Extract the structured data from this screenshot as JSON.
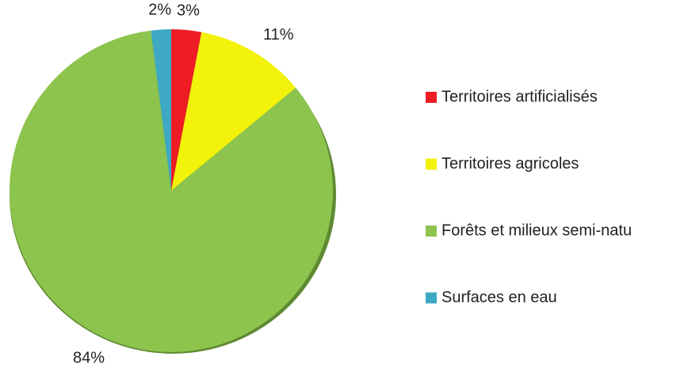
{
  "chart_data": {
    "type": "pie",
    "categories": [
      "Territoires artificialisés",
      "Territoires agricoles",
      "Forêts et milieux semi-natu",
      "Surfaces en eau"
    ],
    "values": [
      3,
      11,
      84,
      2
    ],
    "value_labels": [
      "3%",
      "11%",
      "84%",
      "2%"
    ],
    "colors": [
      "#ee1c25",
      "#f2f20a",
      "#8dc44e",
      "#3fa9c4"
    ],
    "legend": "right"
  }
}
